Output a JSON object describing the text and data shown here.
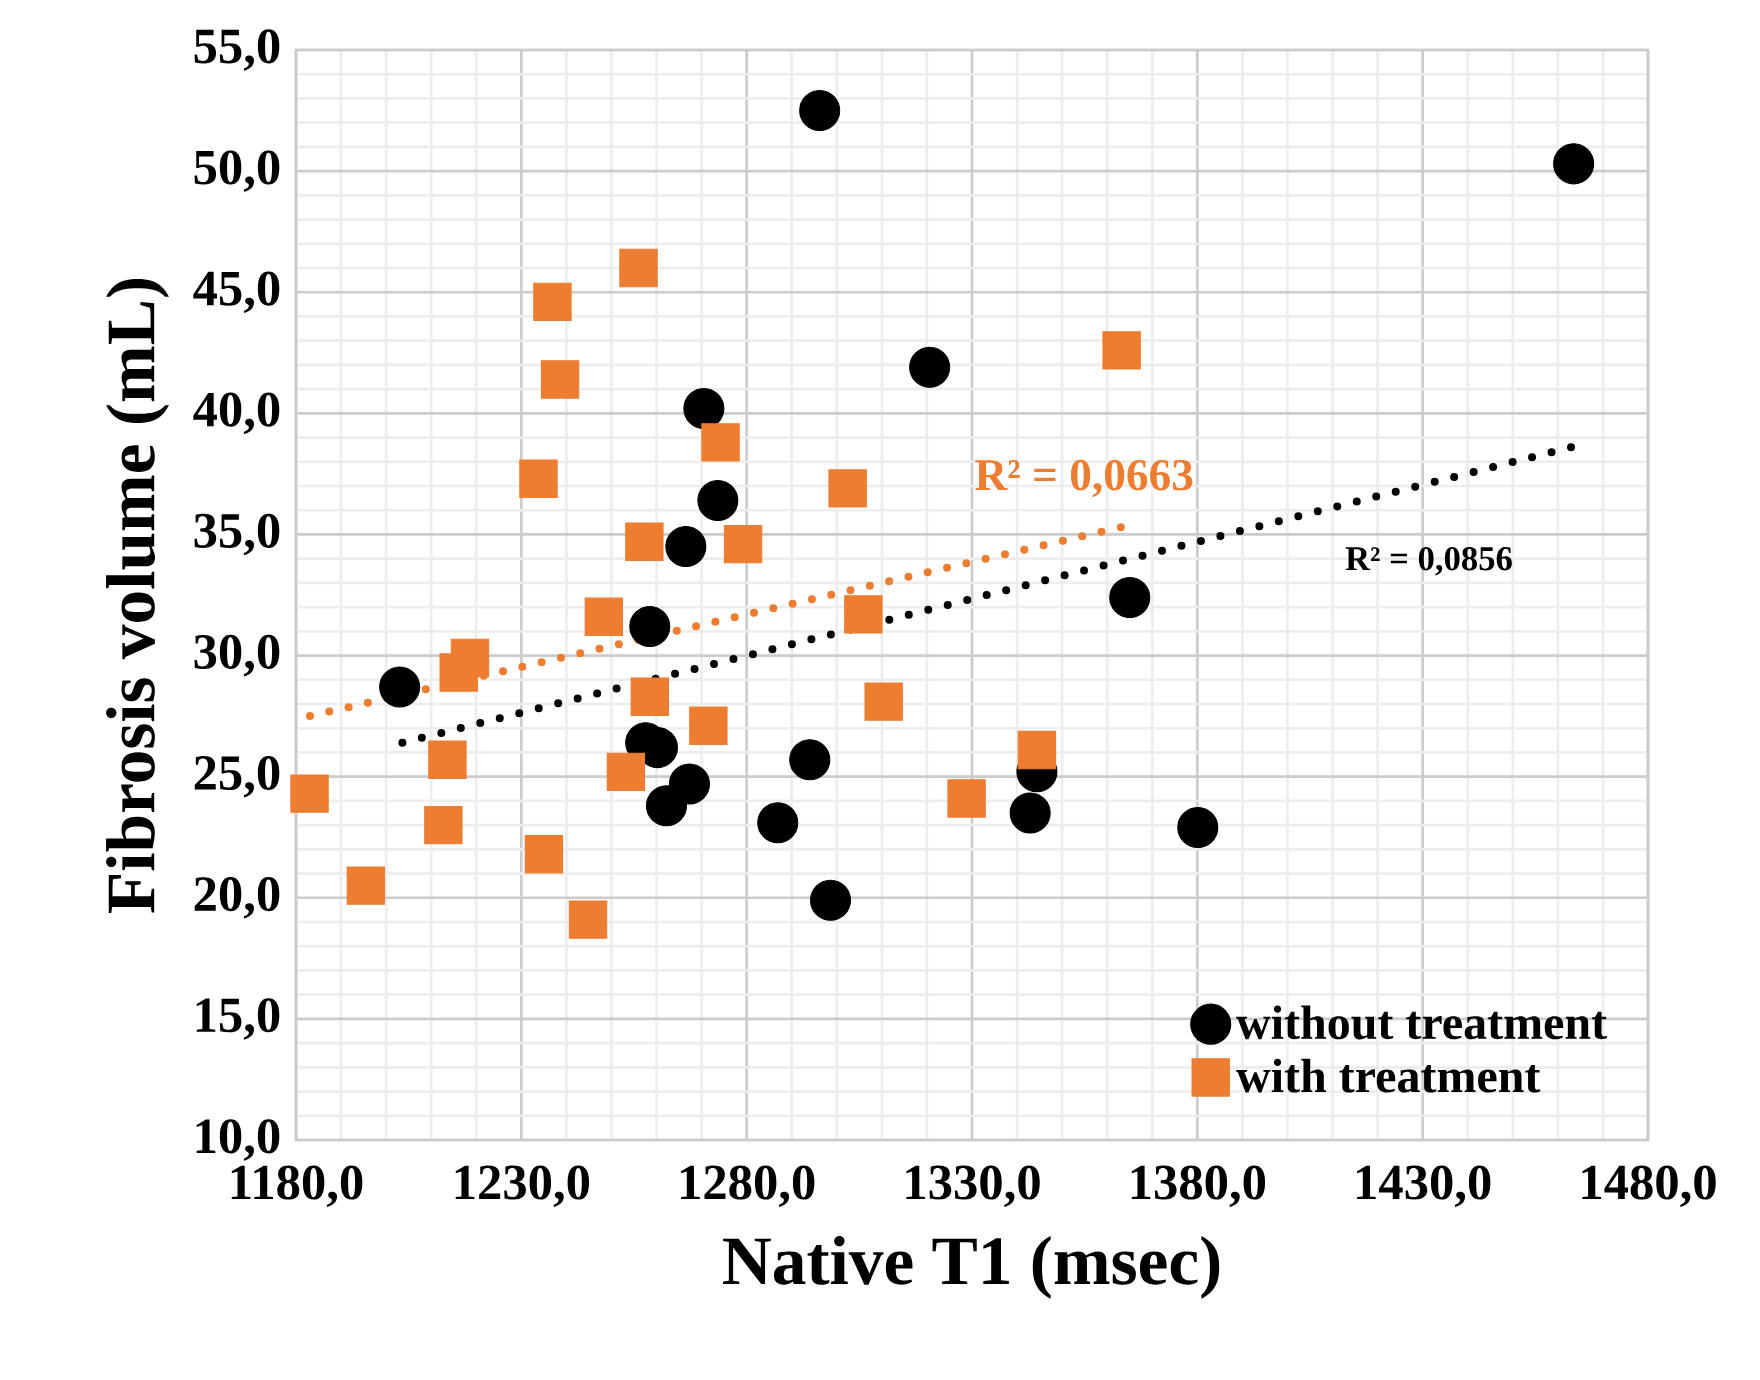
{
  "chart_data": {
    "type": "scatter",
    "xlabel": "Native T1 (msec)",
    "ylabel": "Fibrosis volume (mL)",
    "xlim": [
      1180,
      1480
    ],
    "ylim": [
      10,
      55
    ],
    "xticks": [
      {
        "value": 1180,
        "label": "1180,0"
      },
      {
        "value": 1230,
        "label": "1230,0"
      },
      {
        "value": 1280,
        "label": "1280,0"
      },
      {
        "value": 1330,
        "label": "1330,0"
      },
      {
        "value": 1380,
        "label": "1380,0"
      },
      {
        "value": 1430,
        "label": "1430,0"
      },
      {
        "value": 1480,
        "label": "1480,0"
      }
    ],
    "yticks": [
      {
        "value": 10,
        "label": "10,0"
      },
      {
        "value": 15,
        "label": "15,0"
      },
      {
        "value": 20,
        "label": "20,0"
      },
      {
        "value": 25,
        "label": "25,0"
      },
      {
        "value": 30,
        "label": "30,0"
      },
      {
        "value": 35,
        "label": "35,0"
      },
      {
        "value": 40,
        "label": "40,0"
      },
      {
        "value": 45,
        "label": "45,0"
      },
      {
        "value": 50,
        "label": "50,0"
      },
      {
        "value": 55,
        "label": "55,0"
      }
    ],
    "grid": true,
    "legend": "bottom right",
    "series": [
      {
        "name": "without treatment",
        "color": "#000000",
        "marker": "circle",
        "x": [
          1296.2,
          1463.5,
          1320.6,
          1270.5,
          1273.6,
          1266.5,
          1365,
          1258.5,
          1203,
          1257.6,
          1260.2,
          1267.3,
          1262.2,
          1294,
          1286.9,
          1298.6,
          1344.4,
          1342.9,
          1380.1
        ],
        "values": [
          52.5,
          50.3,
          41.9,
          40.2,
          36.4,
          34.5,
          32.4,
          31.2,
          28.7,
          26.4,
          26.2,
          24.7,
          23.8,
          25.7,
          23.1,
          19.9,
          25.2,
          23.5,
          22.9
        ]
      },
      {
        "name": "with treatment",
        "color": "#ed7d31",
        "marker": "square",
        "x": [
          1256,
          1236.9,
          1238.6,
          1274.2,
          1233.8,
          1302.4,
          1257.3,
          1279.2,
          1248.3,
          1305.9,
          1218.6,
          1216.1,
          1258.5,
          1310.4,
          1271.5,
          1183,
          1213.6,
          1253.2,
          1212.7,
          1235,
          1195.5,
          1244.8,
          1328.8,
          1363.2,
          1344.4
        ],
        "values": [
          46.0,
          44.6,
          41.4,
          38.8,
          37.3,
          36.9,
          34.7,
          34.6,
          31.6,
          31.7,
          29.9,
          29.3,
          28.3,
          28.1,
          27.1,
          24.3,
          25.7,
          25.2,
          23.0,
          21.8,
          20.5,
          19.1,
          24.1,
          42.6,
          26.1
        ]
      },
      {
        "type": "line",
        "color": "#ed7d31",
        "line_style": "dotted",
        "marker": "none",
        "x": [
          1183.1,
          1363.1
        ],
        "values": [
          27.5,
          35.3
        ]
      },
      {
        "type": "line",
        "color": "#000000",
        "line_style": "dotted",
        "marker": "none",
        "x": [
          1203.6,
          1463
        ],
        "values": [
          26.4,
          38.6
        ]
      }
    ],
    "annotations": [
      "R² = 0,0663",
      "R² = 0,0856"
    ]
  }
}
